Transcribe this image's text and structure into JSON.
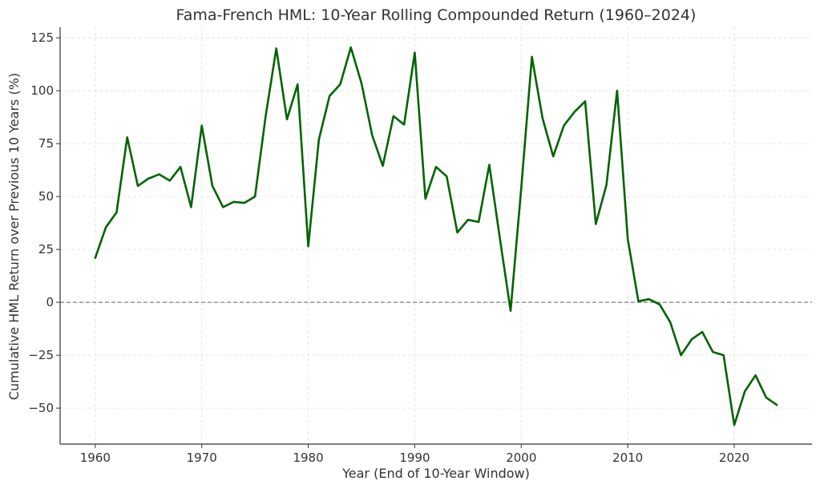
{
  "chart_data": {
    "type": "line",
    "title": "Fama-French HML: 10-Year Rolling Compounded Return (1960–2024)",
    "xlabel": "Year (End of 10-Year Window)",
    "ylabel": "Cumulative HML Return over Previous 10 Years (%)",
    "xlim": [
      1956.7,
      2027.3
    ],
    "ylim": [
      -67,
      130
    ],
    "xticks": [
      1960,
      1970,
      1980,
      1990,
      2000,
      2010,
      2020
    ],
    "yticks": [
      125,
      100,
      75,
      50,
      25,
      0,
      -25,
      -50
    ],
    "ytick_labels": [
      "125",
      "100",
      "75",
      "50",
      "25",
      "0",
      "−25",
      "−50"
    ],
    "grid": true,
    "reference_line": {
      "y": 0,
      "style": "dashed",
      "color": "#808080"
    },
    "series": [
      {
        "color": "#006400",
        "x": [
          1960,
          1961,
          1962,
          1963,
          1964,
          1965,
          1966,
          1967,
          1968,
          1969,
          1970,
          1971,
          1972,
          1973,
          1974,
          1975,
          1976,
          1977,
          1978,
          1979,
          1980,
          1981,
          1982,
          1983,
          1984,
          1985,
          1986,
          1987,
          1988,
          1989,
          1990,
          1991,
          1992,
          1993,
          1994,
          1995,
          1996,
          1997,
          1998,
          1999,
          2000,
          2001,
          2002,
          2003,
          2004,
          2005,
          2006,
          2007,
          2008,
          2009,
          2010,
          2011,
          2012,
          2013,
          2014,
          2015,
          2016,
          2017,
          2018,
          2019,
          2020,
          2021,
          2022,
          2023,
          2024
        ],
        "y": [
          21,
          35.5,
          42.5,
          78,
          55,
          58.5,
          60.5,
          57.5,
          64,
          45,
          83.5,
          55,
          45,
          47.5,
          47,
          50,
          88,
          120,
          86.5,
          103,
          26.5,
          77,
          97.5,
          103,
          120.5,
          103.5,
          79,
          64.5,
          88,
          84,
          118,
          49,
          64,
          59.5,
          33,
          39,
          38,
          65,
          30,
          -4,
          54,
          116,
          87,
          69,
          83.5,
          90,
          95,
          37,
          55.5,
          100,
          30,
          0.5,
          1.5,
          -1,
          -9.5,
          -25,
          -17.5,
          -14,
          -23.5,
          -25,
          -58,
          -42,
          -34.5,
          -45,
          -48.5
        ]
      }
    ]
  }
}
